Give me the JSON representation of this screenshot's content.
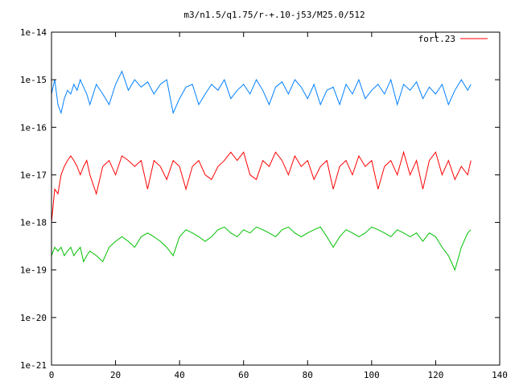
{
  "chart_data": {
    "type": "line",
    "title": "m3/n1.5/q1.75/r-+.10-j53/M25.0/512",
    "xlabel": "",
    "ylabel": "",
    "x_scale": "linear",
    "y_scale": "log",
    "xlim": [
      0,
      140
    ],
    "ylim": [
      1e-21,
      1e-14
    ],
    "x_ticks": [
      0,
      20,
      40,
      60,
      80,
      100,
      120,
      140
    ],
    "x_tick_labels": [
      "0",
      "20",
      "40",
      "60",
      "80",
      "100",
      "120",
      "140"
    ],
    "y_ticks": [
      1e-21,
      1e-20,
      1e-19,
      1e-18,
      1e-17,
      1e-16,
      1e-15,
      1e-14
    ],
    "y_tick_labels": [
      "1e-21",
      "1e-20",
      "1e-19",
      "1e-18",
      "1e-17",
      "1e-16",
      "1e-15",
      "1e-14"
    ],
    "grid": false,
    "legend_position": "top-right",
    "legend": [
      {
        "label": "fort.23",
        "color": "#ff0000"
      }
    ],
    "series": [
      {
        "color": "#0080ff",
        "x": [
          0,
          1,
          2,
          3,
          4,
          5,
          6,
          7,
          8,
          9,
          10,
          11,
          12,
          14,
          16,
          18,
          20,
          22,
          24,
          26,
          28,
          30,
          32,
          34,
          36,
          38,
          40,
          42,
          44,
          46,
          48,
          50,
          52,
          54,
          56,
          58,
          60,
          62,
          64,
          66,
          68,
          70,
          72,
          74,
          76,
          78,
          80,
          82,
          84,
          86,
          88,
          90,
          92,
          94,
          96,
          98,
          100,
          102,
          104,
          106,
          108,
          110,
          112,
          114,
          116,
          118,
          120,
          122,
          124,
          126,
          128,
          130,
          131
        ],
        "y": [
          5e-16,
          1e-15,
          3e-16,
          2e-16,
          4e-16,
          6e-16,
          5e-16,
          8e-16,
          6e-16,
          1e-15,
          7e-16,
          5e-16,
          3e-16,
          8e-16,
          5e-16,
          3e-16,
          8e-16,
          1.5e-15,
          6e-16,
          1e-15,
          7e-16,
          9e-16,
          5e-16,
          8e-16,
          1e-15,
          2e-16,
          4e-16,
          7e-16,
          8e-16,
          3e-16,
          5e-16,
          8e-16,
          6e-16,
          1e-15,
          4e-16,
          6e-16,
          8e-16,
          5e-16,
          1e-15,
          6e-16,
          3e-16,
          7e-16,
          9e-16,
          5e-16,
          1e-15,
          7e-16,
          4e-16,
          8e-16,
          3e-16,
          6e-16,
          7e-16,
          3e-16,
          8e-16,
          5e-16,
          1e-15,
          4e-16,
          6e-16,
          8e-16,
          5e-16,
          1e-15,
          3e-16,
          8e-16,
          6e-16,
          9e-16,
          4e-16,
          7e-16,
          5e-16,
          8e-16,
          3e-16,
          6e-16,
          1e-15,
          6e-16,
          8e-16
        ]
      },
      {
        "color": "#ff0000",
        "x": [
          0,
          1,
          2,
          3,
          4,
          5,
          6,
          7,
          8,
          9,
          10,
          11,
          12,
          14,
          16,
          18,
          20,
          22,
          24,
          26,
          28,
          30,
          32,
          34,
          36,
          38,
          40,
          42,
          44,
          46,
          48,
          50,
          52,
          54,
          56,
          58,
          60,
          62,
          64,
          66,
          68,
          70,
          72,
          74,
          76,
          78,
          80,
          82,
          84,
          86,
          88,
          90,
          92,
          94,
          96,
          98,
          100,
          102,
          104,
          106,
          108,
          110,
          112,
          114,
          116,
          118,
          120,
          122,
          124,
          126,
          128,
          130,
          131
        ],
        "y": [
          1e-18,
          5e-18,
          4e-18,
          1e-17,
          1.5e-17,
          2e-17,
          2.5e-17,
          2e-17,
          1.5e-17,
          1e-17,
          1.5e-17,
          2e-17,
          1e-17,
          4e-18,
          1.5e-17,
          2e-17,
          1e-17,
          2.5e-17,
          2e-17,
          1.5e-17,
          2e-17,
          5e-18,
          2e-17,
          1.5e-17,
          8e-18,
          2e-17,
          1.5e-17,
          5e-18,
          1.5e-17,
          2e-17,
          1e-17,
          8e-18,
          1.5e-17,
          2e-17,
          3e-17,
          2e-17,
          3e-17,
          1e-17,
          8e-18,
          2e-17,
          1.5e-17,
          3e-17,
          2e-17,
          1e-17,
          2.5e-17,
          1.5e-17,
          2e-17,
          8e-18,
          1.5e-17,
          2e-17,
          5e-18,
          1.5e-17,
          2e-17,
          1e-17,
          2.5e-17,
          1.5e-17,
          2e-17,
          5e-18,
          1.5e-17,
          2e-17,
          1e-17,
          3e-17,
          1e-17,
          2e-17,
          5e-18,
          2e-17,
          3e-17,
          1e-17,
          2e-17,
          8e-18,
          1.5e-17,
          1e-17,
          2e-17
        ]
      },
      {
        "color": "#00c000",
        "x": [
          0,
          1,
          2,
          3,
          4,
          5,
          6,
          7,
          8,
          9,
          10,
          11,
          12,
          14,
          16,
          18,
          20,
          22,
          24,
          26,
          28,
          30,
          32,
          34,
          36,
          38,
          40,
          42,
          44,
          46,
          48,
          50,
          52,
          54,
          56,
          58,
          60,
          62,
          64,
          66,
          68,
          70,
          72,
          74,
          76,
          78,
          80,
          82,
          84,
          86,
          88,
          90,
          92,
          94,
          96,
          98,
          100,
          102,
          104,
          106,
          108,
          110,
          112,
          114,
          116,
          118,
          120,
          122,
          124,
          126,
          128,
          130,
          131
        ],
        "y": [
          2e-19,
          3e-19,
          2.5e-19,
          3e-19,
          2e-19,
          2.5e-19,
          3e-19,
          2e-19,
          2.5e-19,
          3e-19,
          1.5e-19,
          2e-19,
          2.5e-19,
          2e-19,
          1.5e-19,
          3e-19,
          4e-19,
          5e-19,
          4e-19,
          3e-19,
          5e-19,
          6e-19,
          5e-19,
          4e-19,
          3e-19,
          2e-19,
          5e-19,
          7e-19,
          6e-19,
          5e-19,
          4e-19,
          5e-19,
          7e-19,
          8e-19,
          6e-19,
          5e-19,
          7e-19,
          6e-19,
          8e-19,
          7e-19,
          6e-19,
          5e-19,
          7e-19,
          8e-19,
          6e-19,
          5e-19,
          6e-19,
          7e-19,
          8e-19,
          5e-19,
          3e-19,
          5e-19,
          7e-19,
          6e-19,
          5e-19,
          6e-19,
          8e-19,
          7e-19,
          6e-19,
          5e-19,
          7e-19,
          6e-19,
          5e-19,
          6e-19,
          4e-19,
          6e-19,
          5e-19,
          3e-19,
          2e-19,
          1e-19,
          3e-19,
          6e-19,
          7e-19
        ]
      }
    ]
  }
}
